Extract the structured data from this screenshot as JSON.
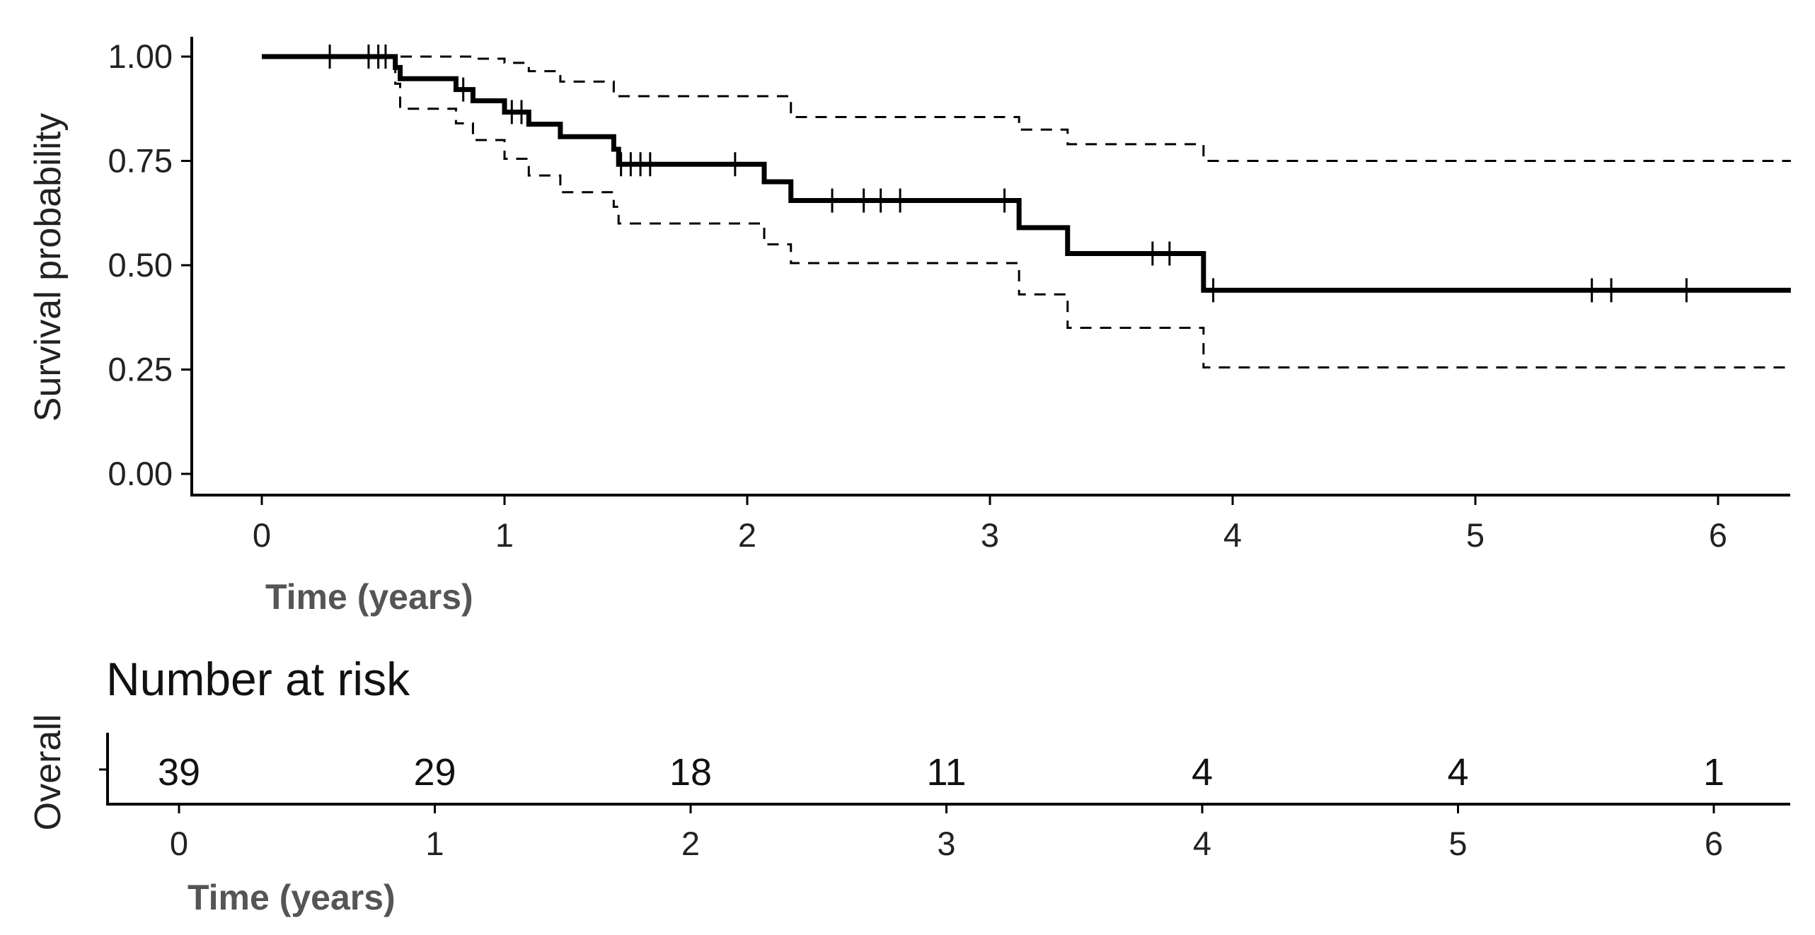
{
  "chart_data": {
    "type": "line",
    "subtype": "kaplan-meier",
    "title": "",
    "xlabel": "Time (years)",
    "ylabel": "Survival probability",
    "xlim": [
      -0.3,
      6.3
    ],
    "ylim": [
      -0.05,
      1.05
    ],
    "x_ticks": [
      0,
      1,
      2,
      3,
      4,
      5,
      6
    ],
    "y_ticks": [
      0,
      0.25,
      0.5,
      0.75,
      1.0
    ],
    "y_tick_labels": [
      "0.00",
      "0.25",
      "0.50",
      "0.75",
      "1.00"
    ],
    "grid": false,
    "series": [
      {
        "role": "estimate",
        "line_style": "solid",
        "color": "#000000",
        "steps": [
          [
            0,
            1.0
          ],
          [
            0.55,
            0.974
          ],
          [
            0.57,
            0.947
          ],
          [
            0.8,
            0.921
          ],
          [
            0.87,
            0.894
          ],
          [
            1.0,
            0.867
          ],
          [
            1.1,
            0.838
          ],
          [
            1.23,
            0.808
          ],
          [
            1.45,
            0.778
          ],
          [
            1.47,
            0.742
          ],
          [
            2.07,
            0.7
          ],
          [
            2.18,
            0.655
          ],
          [
            3.12,
            0.59
          ],
          [
            3.32,
            0.528
          ],
          [
            3.88,
            0.44
          ]
        ],
        "end_x": 6.3,
        "censor_marks": [
          [
            0.28,
            1.0
          ],
          [
            0.44,
            1.0
          ],
          [
            0.48,
            1.0
          ],
          [
            0.51,
            1.0
          ],
          [
            0.83,
            0.921
          ],
          [
            1.03,
            0.867
          ],
          [
            1.07,
            0.867
          ],
          [
            1.48,
            0.742
          ],
          [
            1.52,
            0.742
          ],
          [
            1.56,
            0.742
          ],
          [
            1.6,
            0.742
          ],
          [
            1.95,
            0.742
          ],
          [
            2.35,
            0.655
          ],
          [
            2.48,
            0.655
          ],
          [
            2.55,
            0.655
          ],
          [
            2.63,
            0.655
          ],
          [
            3.06,
            0.655
          ],
          [
            3.67,
            0.528
          ],
          [
            3.74,
            0.528
          ],
          [
            3.92,
            0.44
          ],
          [
            5.48,
            0.44
          ],
          [
            5.56,
            0.44
          ],
          [
            5.87,
            0.44
          ]
        ]
      },
      {
        "role": "upper confidence bound",
        "line_style": "dashed",
        "color": "#000000",
        "steps": [
          [
            0,
            1.0
          ],
          [
            0.55,
            1.0
          ],
          [
            0.87,
            0.995
          ],
          [
            1.0,
            0.985
          ],
          [
            1.1,
            0.965
          ],
          [
            1.23,
            0.94
          ],
          [
            1.45,
            0.905
          ],
          [
            2.18,
            0.855
          ],
          [
            3.12,
            0.825
          ],
          [
            3.32,
            0.79
          ],
          [
            3.88,
            0.75
          ]
        ],
        "end_x": 6.3
      },
      {
        "role": "lower confidence bound",
        "line_style": "dashed",
        "color": "#000000",
        "steps": [
          [
            0,
            1.0
          ],
          [
            0.55,
            0.935
          ],
          [
            0.57,
            0.875
          ],
          [
            0.8,
            0.84
          ],
          [
            0.87,
            0.8
          ],
          [
            1.0,
            0.755
          ],
          [
            1.1,
            0.715
          ],
          [
            1.23,
            0.675
          ],
          [
            1.45,
            0.64
          ],
          [
            1.47,
            0.6
          ],
          [
            2.07,
            0.55
          ],
          [
            2.18,
            0.505
          ],
          [
            3.12,
            0.43
          ],
          [
            3.32,
            0.35
          ],
          [
            3.88,
            0.255
          ]
        ],
        "end_x": 6.3
      }
    ]
  },
  "risk_table": {
    "title": "Number at risk",
    "row_label": "Overall",
    "xlabel": "Time (years)",
    "times": [
      0,
      1,
      2,
      3,
      4,
      5,
      6
    ],
    "counts": [
      "39",
      "29",
      "18",
      "11",
      "4",
      "4",
      "1"
    ]
  }
}
